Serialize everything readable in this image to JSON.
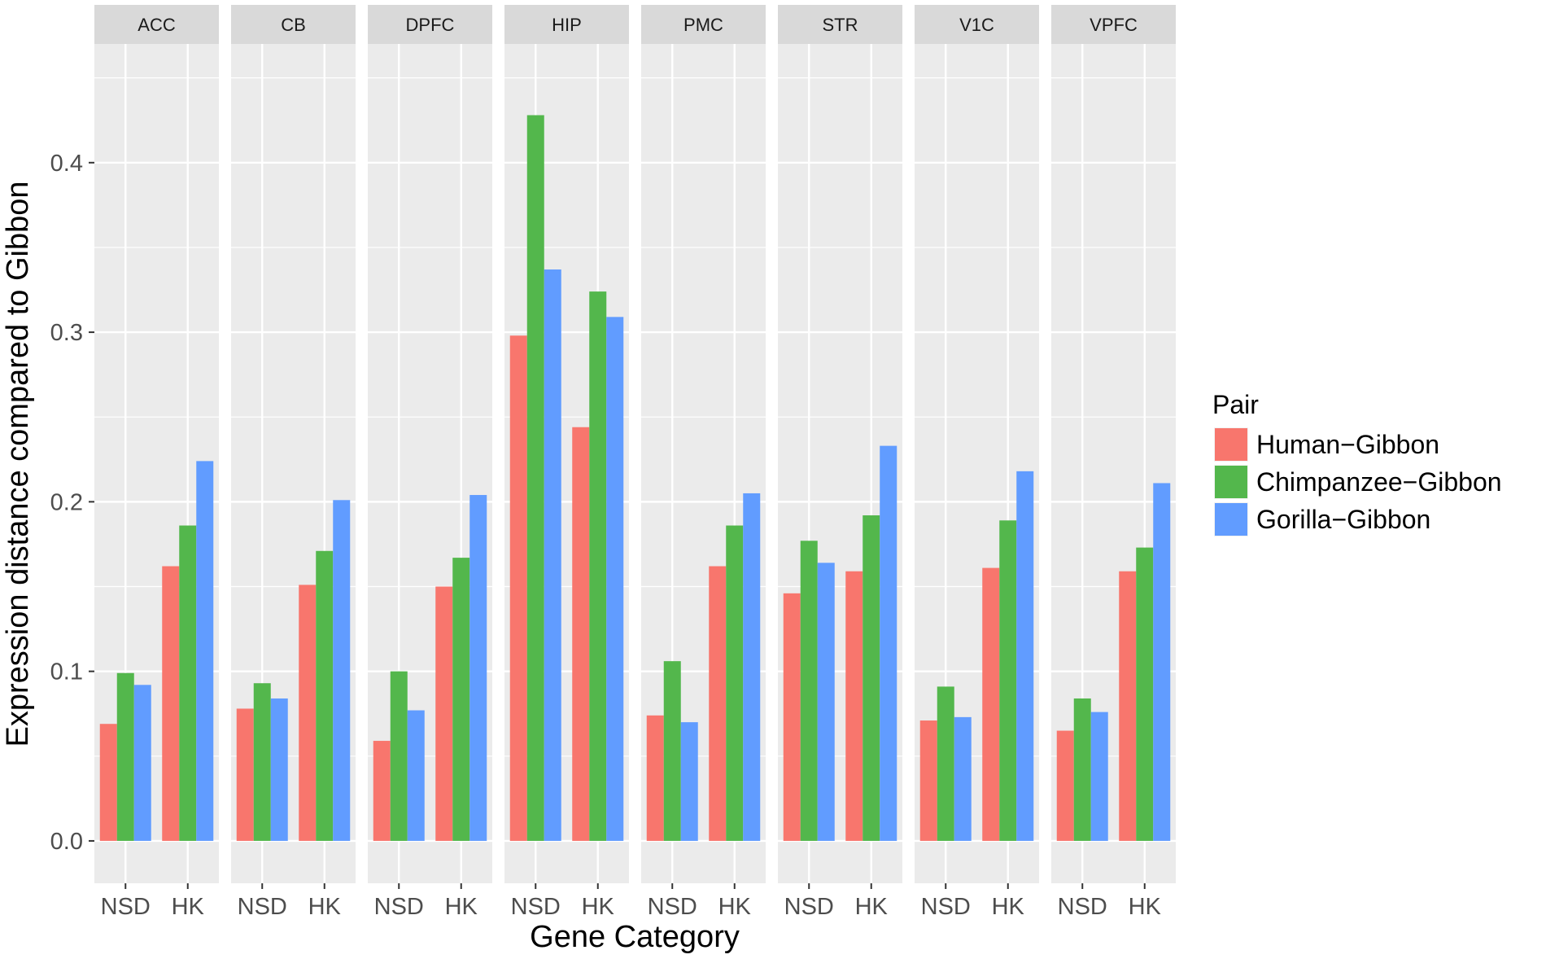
{
  "chart_data": {
    "type": "bar",
    "facet_label": "",
    "facets": [
      "ACC",
      "CB",
      "DPFC",
      "HIP",
      "PMC",
      "STR",
      "V1C",
      "VPFC"
    ],
    "categories": [
      "NSD",
      "HK"
    ],
    "series": [
      {
        "name": "Human−Gibbon",
        "color": "#F8766D",
        "values": [
          [
            0.069,
            0.162
          ],
          [
            0.078,
            0.151
          ],
          [
            0.059,
            0.15
          ],
          [
            0.298,
            0.244
          ],
          [
            0.074,
            0.162
          ],
          [
            0.146,
            0.159
          ],
          [
            0.071,
            0.161
          ],
          [
            0.065,
            0.159
          ]
        ]
      },
      {
        "name": "Chimpanzee−Gibbon",
        "color": "#53B74C",
        "values": [
          [
            0.099,
            0.186
          ],
          [
            0.093,
            0.171
          ],
          [
            0.1,
            0.167
          ],
          [
            0.428,
            0.324
          ],
          [
            0.106,
            0.186
          ],
          [
            0.177,
            0.192
          ],
          [
            0.091,
            0.189
          ],
          [
            0.084,
            0.173
          ]
        ]
      },
      {
        "name": "Gorilla−Gibbon",
        "color": "#619CFF",
        "values": [
          [
            0.092,
            0.224
          ],
          [
            0.084,
            0.201
          ],
          [
            0.077,
            0.204
          ],
          [
            0.337,
            0.309
          ],
          [
            0.07,
            0.205
          ],
          [
            0.164,
            0.233
          ],
          [
            0.073,
            0.218
          ],
          [
            0.076,
            0.211
          ]
        ]
      }
    ],
    "xlabel": "Gene Category",
    "ylabel": "Expression distance compared to Gibbon",
    "ylim": [
      -0.025,
      0.47
    ],
    "yticks": [
      0.0,
      0.1,
      0.2,
      0.3,
      0.4
    ],
    "ytick_labels": [
      "0.0",
      "0.1",
      "0.2",
      "0.3",
      "0.4"
    ],
    "grid": true,
    "legend": {
      "title": "Pair",
      "position": "right"
    },
    "colors": {
      "panel_bg": "#EBEBEB",
      "strip_bg": "#D9D9D9",
      "grid": "#FFFFFF"
    }
  }
}
